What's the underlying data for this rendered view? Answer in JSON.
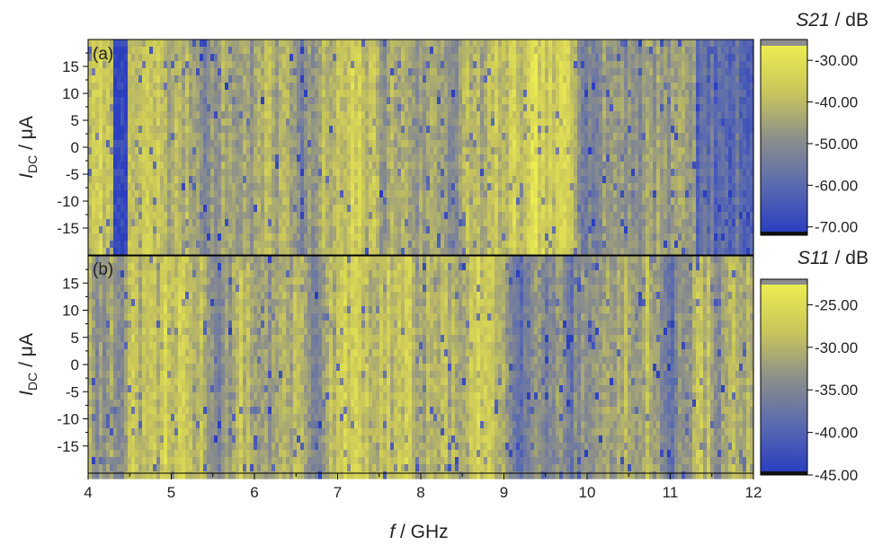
{
  "chart_data": [
    {
      "type": "heatmap",
      "panel_label": "(a)",
      "ylabel": "I",
      "ylabel_sub": "DC",
      "ylabel_unit": " / μA",
      "y_ticks": [
        15,
        10,
        5,
        0,
        -5,
        -10,
        -15
      ],
      "y_tick_labels": [
        "15",
        "10",
        "5",
        "0",
        "-5",
        "-10",
        "-15"
      ],
      "ylim": [
        -20,
        20
      ],
      "xlim": [
        4,
        12
      ],
      "colorbar": {
        "title_var": "S21",
        "title_unit": " / dB",
        "range": [
          -72,
          -25
        ],
        "ticks": [
          -30,
          -40,
          -50,
          -60,
          -70
        ],
        "tick_labels": [
          "-30.00",
          "-40.00",
          "-50.00",
          "-60.00",
          "-70.00"
        ],
        "colors": [
          "#2b3fbf",
          "#5a6ab0",
          "#8c8f8a",
          "#c9c65a",
          "#ecec52"
        ]
      }
    },
    {
      "type": "heatmap",
      "panel_label": "(b)",
      "ylabel": "I",
      "ylabel_sub": "DC",
      "ylabel_unit": " / μA",
      "y_ticks": [
        15,
        10,
        5,
        0,
        -5,
        -10,
        -15
      ],
      "y_tick_labels": [
        "15",
        "10",
        "5",
        "0",
        "-5",
        "-10",
        "-15"
      ],
      "ylim": [
        -20,
        20
      ],
      "xlim": [
        4,
        12
      ],
      "xlabel": "f",
      "xlabel_unit": " / GHz",
      "x_ticks": [
        4,
        5,
        6,
        7,
        8,
        9,
        10,
        11,
        12
      ],
      "x_tick_labels": [
        "4",
        "5",
        "6",
        "7",
        "8",
        "9",
        "10",
        "11",
        "12"
      ],
      "colorbar": {
        "title_var": "S11",
        "title_unit": " / dB",
        "range": [
          -45,
          -22
        ],
        "ticks": [
          -25,
          -30,
          -35,
          -40,
          -45
        ],
        "tick_labels": [
          "-25.00",
          "-30.00",
          "-35.00",
          "-40.00",
          "-45.00"
        ],
        "colors": [
          "#2b3fbf",
          "#5a6ab0",
          "#8c8f8a",
          "#c9c65a",
          "#ecec52"
        ]
      }
    }
  ]
}
